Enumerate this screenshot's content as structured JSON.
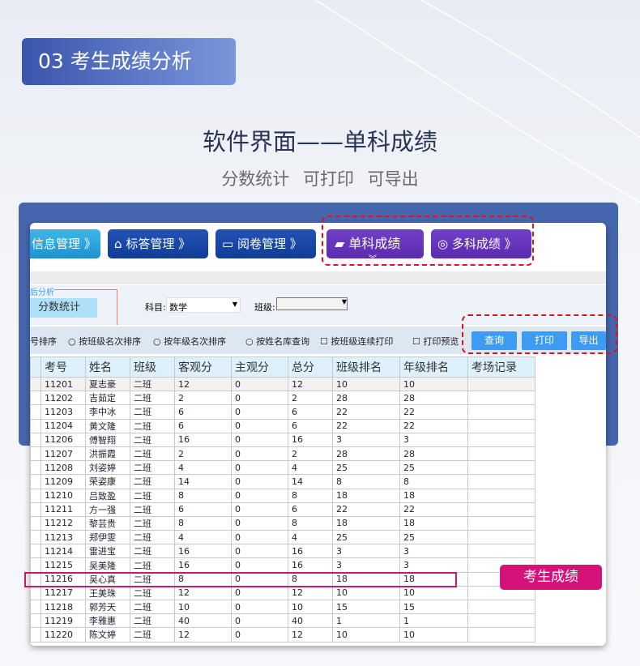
{
  "header": {
    "badge": "03  考生成绩分析",
    "title": "软件界面——单科成绩",
    "subtitle": "分数统计  可打印  可导出"
  },
  "nav": [
    {
      "label": "信息管理 》",
      "icon": "info-icon"
    },
    {
      "label": "标答管理 》",
      "icon": "home-icon"
    },
    {
      "label": "阅卷管理 》",
      "icon": "monitor-icon"
    },
    {
      "label": "单科成绩",
      "icon": "wallet-icon"
    },
    {
      "label": "多科成绩 》",
      "icon": "chart-magnifier-icon"
    }
  ],
  "sidebar": {
    "group": "后分析",
    "item": "分数统计"
  },
  "filter": {
    "subject_label": "科目:",
    "subject_value": "数学",
    "class_label": "班级:",
    "class_value": ""
  },
  "options": [
    "号排序",
    "按班级名次排序",
    "按年级名次排序",
    "按姓名库查询",
    "按班级连续打印",
    "打印预览"
  ],
  "buttons": {
    "query": "查询",
    "print": "打印",
    "export": "导出"
  },
  "table": {
    "columns": [
      "考号",
      "姓名",
      "班级",
      "客观分",
      "主观分",
      "总分",
      "班级排名",
      "年级排名",
      "考场记录"
    ],
    "rows": [
      [
        "11201",
        "夏志豪",
        "二班",
        "12",
        "0",
        "12",
        "10",
        "10",
        ""
      ],
      [
        "11202",
        "吉茹定",
        "二班",
        "2",
        "0",
        "2",
        "28",
        "28",
        ""
      ],
      [
        "11203",
        "李中冰",
        "二班",
        "6",
        "0",
        "6",
        "22",
        "22",
        ""
      ],
      [
        "11204",
        "黄文隆",
        "二班",
        "6",
        "0",
        "6",
        "22",
        "22",
        ""
      ],
      [
        "11206",
        "傅智翔",
        "二班",
        "16",
        "0",
        "16",
        "3",
        "3",
        ""
      ],
      [
        "11207",
        "洪振霞",
        "二班",
        "2",
        "0",
        "2",
        "28",
        "28",
        ""
      ],
      [
        "11208",
        "刘姿婷",
        "二班",
        "4",
        "0",
        "4",
        "25",
        "25",
        ""
      ],
      [
        "11209",
        "荣姿康",
        "二班",
        "14",
        "0",
        "14",
        "8",
        "8",
        ""
      ],
      [
        "11210",
        "吕致盈",
        "二班",
        "8",
        "0",
        "8",
        "18",
        "18",
        ""
      ],
      [
        "11211",
        "方一强",
        "二班",
        "6",
        "0",
        "6",
        "22",
        "22",
        ""
      ],
      [
        "11212",
        "黎芸贵",
        "二班",
        "8",
        "0",
        "8",
        "18",
        "18",
        ""
      ],
      [
        "11213",
        "郑伊雯",
        "二班",
        "4",
        "0",
        "4",
        "25",
        "25",
        ""
      ],
      [
        "11214",
        "雷进宝",
        "二班",
        "16",
        "0",
        "16",
        "3",
        "3",
        ""
      ],
      [
        "11215",
        "吴美隆",
        "二班",
        "16",
        "0",
        "16",
        "3",
        "3",
        ""
      ],
      [
        "11216",
        "吴心真",
        "二班",
        "8",
        "0",
        "8",
        "18",
        "18",
        ""
      ],
      [
        "11217",
        "王美珠",
        "二班",
        "12",
        "0",
        "12",
        "10",
        "10",
        ""
      ],
      [
        "11218",
        "郭芳天",
        "二班",
        "10",
        "0",
        "10",
        "15",
        "15",
        ""
      ],
      [
        "11219",
        "李雅惠",
        "二班",
        "40",
        "0",
        "40",
        "1",
        "1",
        ""
      ],
      [
        "11220",
        "陈文婷",
        "二班",
        "12",
        "0",
        "12",
        "10",
        "10",
        ""
      ]
    ]
  },
  "callout": "考生成绩",
  "colors": {
    "accent": "#4565ae",
    "highlight": "#c8196e",
    "dash": "#e2111d"
  }
}
